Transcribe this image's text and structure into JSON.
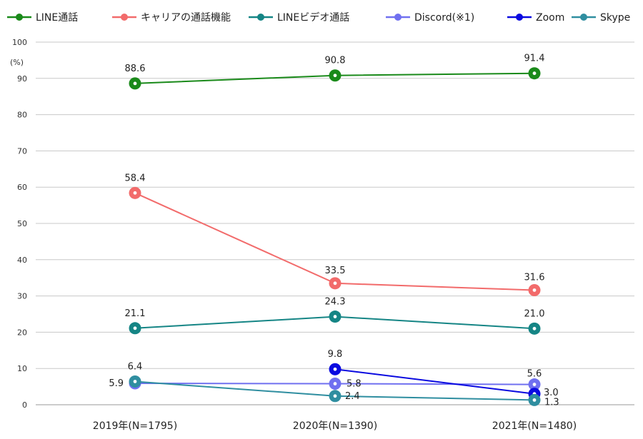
{
  "chart_data": {
    "type": "line",
    "title": "",
    "unit_label": "(%)",
    "xlabel": "",
    "ylabel": "",
    "ylim": [
      0,
      100
    ],
    "yticks": [
      0,
      10,
      20,
      30,
      40,
      50,
      60,
      70,
      80,
      90,
      100
    ],
    "grid": true,
    "legend_position": "top",
    "categories": [
      "2019年(N=1795)",
      "2020年(N=1390)",
      "2021年(N=1480)"
    ],
    "series": [
      {
        "name": "LINE通話",
        "color": "#1a8a1a",
        "values": [
          88.6,
          90.8,
          91.4
        ],
        "labels": [
          "88.6",
          "90.8",
          "91.4"
        ]
      },
      {
        "name": "キャリアの通話機能",
        "color": "#f26b6b",
        "values": [
          58.4,
          33.5,
          31.6
        ],
        "labels": [
          "58.4",
          "33.5",
          "31.6"
        ]
      },
      {
        "name": "LINEビデオ通話",
        "color": "#158585",
        "values": [
          21.1,
          24.3,
          21.0
        ],
        "labels": [
          "21.1",
          "24.3",
          "21.0"
        ]
      },
      {
        "name": "Discord(※1)",
        "color": "#7070f0",
        "values": [
          5.9,
          5.8,
          5.6
        ],
        "labels": [
          "5.9",
          "5.8",
          "5.6"
        ]
      },
      {
        "name": "Zoom",
        "color": "#0a0ae0",
        "values": [
          null,
          9.8,
          3.0
        ],
        "labels": [
          "",
          "9.8",
          "3.0"
        ]
      },
      {
        "name": "Skype",
        "color": "#2f8ea0",
        "values": [
          6.4,
          2.4,
          1.3
        ],
        "labels": [
          "6.4",
          "2.4",
          "1.3"
        ]
      }
    ]
  }
}
